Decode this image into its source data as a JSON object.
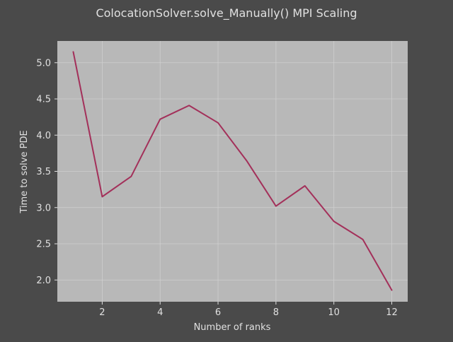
{
  "chart_data": {
    "type": "line",
    "title": "ColocationSolver.solve_Manually() MPI Scaling",
    "xlabel": "Number of ranks",
    "ylabel": "Time to solve PDE",
    "xlim": [
      0.45,
      12.55
    ],
    "ylim": [
      1.7,
      5.3
    ],
    "xticks": [
      2,
      4,
      6,
      8,
      10,
      12
    ],
    "xtick_labels": [
      "2",
      "4",
      "6",
      "8",
      "10",
      "12"
    ],
    "yticks": [
      2.0,
      2.5,
      3.0,
      3.5,
      4.0,
      4.5,
      5.0
    ],
    "ytick_labels": [
      "2.0",
      "2.5",
      "3.0",
      "3.5",
      "4.0",
      "4.5",
      "5.0"
    ],
    "grid": true,
    "series": [
      {
        "x": [
          1,
          2,
          3,
          4,
          5,
          6,
          7,
          8,
          9,
          10,
          11,
          12
        ],
        "values": [
          5.15,
          3.15,
          3.43,
          4.22,
          4.41,
          4.17,
          3.64,
          3.02,
          3.3,
          2.81,
          2.56,
          1.86
        ],
        "color": "#a3305a"
      }
    ]
  },
  "colors": {
    "background": "#4a4a4a",
    "plot_area": "#b8b8b8",
    "text": "#e0e0e0",
    "grid": "#cfcfcf",
    "line": "#a3305a"
  }
}
